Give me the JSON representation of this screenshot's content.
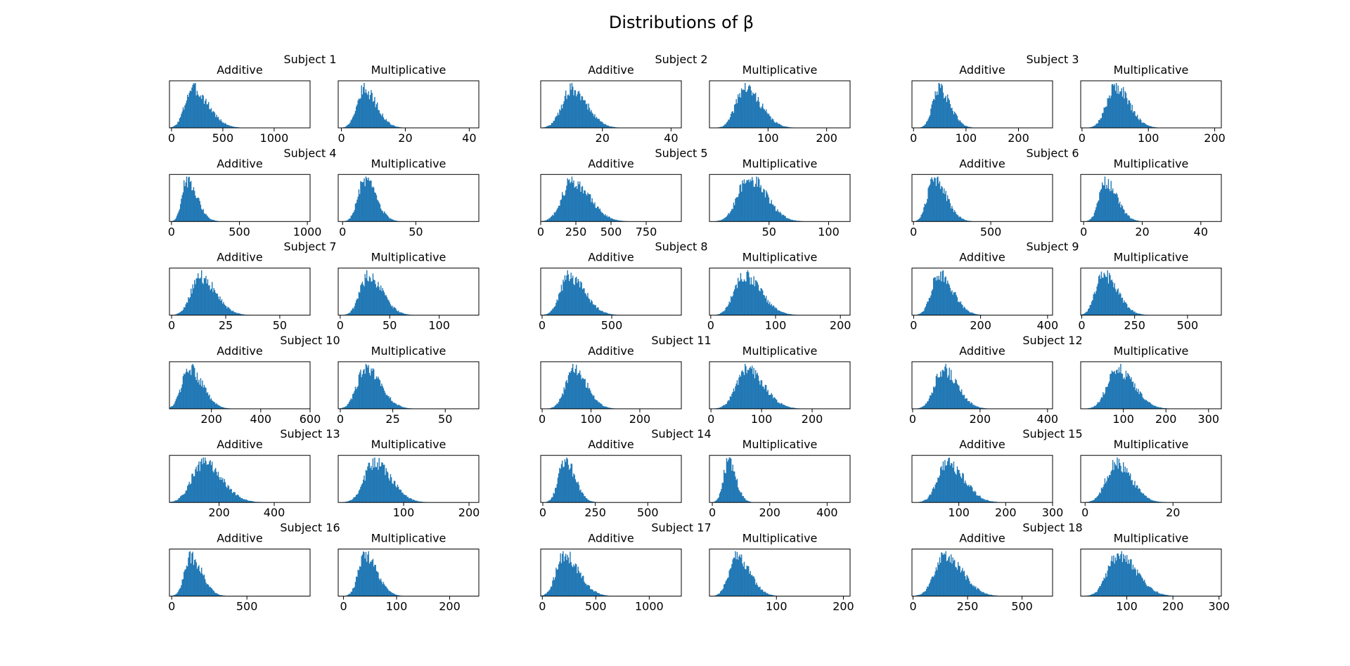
{
  "figure": {
    "title": "Distributions of β",
    "bar_color": "#1f77b4",
    "frame_color": "#000000"
  },
  "chart_data": [
    {
      "subject": "Subject 1",
      "panels": [
        {
          "title": "Additive",
          "type": "histogram",
          "xlim": [
            -20,
            1350
          ],
          "xticks": [
            0,
            500,
            1000
          ],
          "mode": 200,
          "spread": 70,
          "skew": 2.2
        },
        {
          "title": "Multiplicative",
          "type": "histogram",
          "xlim": [
            -1,
            43
          ],
          "xticks": [
            0,
            20,
            40
          ],
          "mode": 7,
          "spread": 2.2,
          "skew": 1.8
        }
      ]
    },
    {
      "subject": "Subject 2",
      "panels": [
        {
          "title": "Additive",
          "type": "histogram",
          "xlim": [
            2,
            43
          ],
          "xticks": [
            20,
            40
          ],
          "mode": 11,
          "spread": 2.8,
          "skew": 1.6
        },
        {
          "title": "Multiplicative",
          "type": "histogram",
          "xlim": [
            0,
            240
          ],
          "xticks": [
            100,
            200
          ],
          "mode": 60,
          "spread": 15,
          "skew": 1.8
        }
      ]
    },
    {
      "subject": "Subject 3",
      "panels": [
        {
          "title": "Additive",
          "type": "histogram",
          "xlim": [
            -3,
            265
          ],
          "xticks": [
            0,
            100,
            200
          ],
          "mode": 48,
          "spread": 12,
          "skew": 1.8
        },
        {
          "title": "Multiplicative",
          "type": "histogram",
          "xlim": [
            -2,
            210
          ],
          "xticks": [
            0,
            100,
            200
          ],
          "mode": 50,
          "spread": 13,
          "skew": 1.6
        }
      ]
    },
    {
      "subject": "Subject 4",
      "panels": [
        {
          "title": "Additive",
          "type": "histogram",
          "xlim": [
            -15,
            1020
          ],
          "xticks": [
            0,
            500,
            1000
          ],
          "mode": 110,
          "spread": 35,
          "skew": 2.2
        },
        {
          "title": "Multiplicative",
          "type": "histogram",
          "xlim": [
            -3,
            93
          ],
          "xticks": [
            0,
            50
          ],
          "mode": 15,
          "spread": 4.5,
          "skew": 1.7
        }
      ]
    },
    {
      "subject": "Subject 5",
      "panels": [
        {
          "title": "Additive",
          "type": "histogram",
          "xlim": [
            0,
            1000
          ],
          "xticks": [
            0,
            250,
            500,
            750
          ],
          "mode": 220,
          "spread": 70,
          "skew": 1.8
        },
        {
          "title": "Multiplicative",
          "type": "histogram",
          "xlim": [
            0,
            118
          ],
          "xticks": [
            50,
            100
          ],
          "mode": 33,
          "spread": 9,
          "skew": 1.6
        }
      ]
    },
    {
      "subject": "Subject 6",
      "panels": [
        {
          "title": "Additive",
          "type": "histogram",
          "xlim": [
            -10,
            900
          ],
          "xticks": [
            0,
            500
          ],
          "mode": 130,
          "spread": 40,
          "skew": 2.0
        },
        {
          "title": "Multiplicative",
          "type": "histogram",
          "xlim": [
            -1,
            47
          ],
          "xticks": [
            0,
            20,
            40
          ],
          "mode": 7.5,
          "spread": 2.2,
          "skew": 1.8
        }
      ]
    },
    {
      "subject": "Subject 7",
      "panels": [
        {
          "title": "Additive",
          "type": "histogram",
          "xlim": [
            -1,
            64
          ],
          "xticks": [
            0,
            25,
            50
          ],
          "mode": 13,
          "spread": 4,
          "skew": 1.8
        },
        {
          "title": "Multiplicative",
          "type": "histogram",
          "xlim": [
            -2,
            140
          ],
          "xticks": [
            0,
            50,
            100
          ],
          "mode": 28,
          "spread": 8,
          "skew": 1.8
        }
      ]
    },
    {
      "subject": "Subject 8",
      "panels": [
        {
          "title": "Additive",
          "type": "histogram",
          "xlim": [
            -10,
            1000
          ],
          "xticks": [
            0,
            500
          ],
          "mode": 190,
          "spread": 60,
          "skew": 1.9
        },
        {
          "title": "Multiplicative",
          "type": "histogram",
          "xlim": [
            -2,
            215
          ],
          "xticks": [
            0,
            100,
            200
          ],
          "mode": 50,
          "spread": 14,
          "skew": 1.9
        }
      ]
    },
    {
      "subject": "Subject 9",
      "panels": [
        {
          "title": "Additive",
          "type": "histogram",
          "xlim": [
            -5,
            415
          ],
          "xticks": [
            0,
            200,
            400
          ],
          "mode": 75,
          "spread": 22,
          "skew": 1.9
        },
        {
          "title": "Multiplicative",
          "type": "histogram",
          "xlim": [
            -5,
            660
          ],
          "xticks": [
            0,
            250,
            500
          ],
          "mode": 100,
          "spread": 35,
          "skew": 1.9
        }
      ]
    },
    {
      "subject": "Subject 10",
      "panels": [
        {
          "title": "Additive",
          "type": "histogram",
          "xlim": [
            30,
            600
          ],
          "xticks": [
            200,
            400,
            600
          ],
          "mode": 110,
          "spread": 30,
          "skew": 1.8
        },
        {
          "title": "Multiplicative",
          "type": "histogram",
          "xlim": [
            -1,
            66
          ],
          "xticks": [
            0,
            25,
            50
          ],
          "mode": 12,
          "spread": 4,
          "skew": 1.8
        }
      ]
    },
    {
      "subject": "Subject 11",
      "panels": [
        {
          "title": "Additive",
          "type": "histogram",
          "xlim": [
            -3,
            285
          ],
          "xticks": [
            0,
            100,
            200
          ],
          "mode": 65,
          "spread": 17,
          "skew": 1.6
        },
        {
          "title": "Multiplicative",
          "type": "histogram",
          "xlim": [
            -3,
            275
          ],
          "xticks": [
            0,
            100,
            200
          ],
          "mode": 70,
          "spread": 20,
          "skew": 1.7
        }
      ]
    },
    {
      "subject": "Subject 12",
      "panels": [
        {
          "title": "Additive",
          "type": "histogram",
          "xlim": [
            -2,
            415
          ],
          "xticks": [
            0,
            200,
            400
          ],
          "mode": 90,
          "spread": 25,
          "skew": 1.7
        },
        {
          "title": "Multiplicative",
          "type": "histogram",
          "xlim": [
            0,
            330
          ],
          "xticks": [
            100,
            200,
            300
          ],
          "mode": 85,
          "spread": 23,
          "skew": 1.7
        }
      ]
    },
    {
      "subject": "Subject 13",
      "panels": [
        {
          "title": "Additive",
          "type": "histogram",
          "xlim": [
            20,
            530
          ],
          "xticks": [
            200,
            400
          ],
          "mode": 140,
          "spread": 40,
          "skew": 1.7
        },
        {
          "title": "Multiplicative",
          "type": "histogram",
          "xlim": [
            0,
            215
          ],
          "xticks": [
            100,
            200
          ],
          "mode": 55,
          "spread": 15,
          "skew": 1.7
        }
      ]
    },
    {
      "subject": "Subject 14",
      "panels": [
        {
          "title": "Additive",
          "type": "histogram",
          "xlim": [
            -10,
            660
          ],
          "xticks": [
            0,
            250,
            500
          ],
          "mode": 105,
          "spread": 30,
          "skew": 1.6
        },
        {
          "title": "Multiplicative",
          "type": "histogram",
          "xlim": [
            -10,
            480
          ],
          "xticks": [
            0,
            200,
            400
          ],
          "mode": 55,
          "spread": 17,
          "skew": 1.6
        }
      ]
    },
    {
      "subject": "Subject 15",
      "panels": [
        {
          "title": "Additive",
          "type": "histogram",
          "xlim": [
            0,
            300
          ],
          "xticks": [
            100,
            200,
            300
          ],
          "mode": 75,
          "spread": 20,
          "skew": 1.8
        },
        {
          "title": "Multiplicative",
          "type": "histogram",
          "xlim": [
            -1,
            31
          ],
          "xticks": [
            0,
            20
          ],
          "mode": 7,
          "spread": 2.2,
          "skew": 1.6
        }
      ]
    },
    {
      "subject": "Subject 16",
      "panels": [
        {
          "title": "Additive",
          "type": "histogram",
          "xlim": [
            -15,
            920
          ],
          "xticks": [
            0,
            500
          ],
          "mode": 125,
          "spread": 40,
          "skew": 1.9
        },
        {
          "title": "Multiplicative",
          "type": "histogram",
          "xlim": [
            -10,
            255
          ],
          "xticks": [
            0,
            100,
            200
          ],
          "mode": 40,
          "spread": 12,
          "skew": 1.9
        }
      ]
    },
    {
      "subject": "Subject 17",
      "panels": [
        {
          "title": "Additive",
          "type": "histogram",
          "xlim": [
            -15,
            1300
          ],
          "xticks": [
            0,
            500,
            1000
          ],
          "mode": 200,
          "spread": 70,
          "skew": 2.0
        },
        {
          "title": "Multiplicative",
          "type": "histogram",
          "xlim": [
            0,
            210
          ],
          "xticks": [
            100,
            200
          ],
          "mode": 40,
          "spread": 11,
          "skew": 1.8
        }
      ]
    },
    {
      "subject": "Subject 18",
      "panels": [
        {
          "title": "Additive",
          "type": "histogram",
          "xlim": [
            -5,
            640
          ],
          "xticks": [
            0,
            250,
            500
          ],
          "mode": 145,
          "spread": 45,
          "skew": 1.8
        },
        {
          "title": "Multiplicative",
          "type": "histogram",
          "xlim": [
            0,
            305
          ],
          "xticks": [
            100,
            200,
            300
          ],
          "mode": 80,
          "spread": 22,
          "skew": 1.8
        }
      ]
    }
  ]
}
